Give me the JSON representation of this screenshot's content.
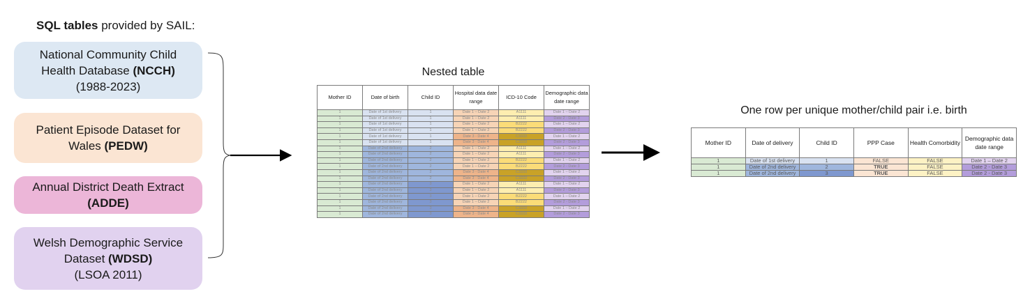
{
  "heading": {
    "bold": "SQL tables",
    "rest": " provided by SAIL:"
  },
  "sources": [
    {
      "line1": "National Community Child",
      "line2_pre": "Health Database ",
      "line2_bold": "(NCCH)",
      "line3": "(1988-2023)",
      "color": "#dde8f3"
    },
    {
      "line1": "Patient Episode Dataset for",
      "line2_pre": "Wales ",
      "line2_bold": "(PEDW)",
      "line3": "",
      "color": "#fbe5d3"
    },
    {
      "line1": "Annual District Death Extract",
      "line2_pre": "",
      "line2_bold": "(ADDE)",
      "line3": "",
      "color": "#ecb6d8"
    },
    {
      "line1": "Welsh Demographic Service",
      "line2_pre": "Dataset ",
      "line2_bold": "(WDSD)",
      "line3": "(LSOA 2011)",
      "color": "#e1d2ef"
    }
  ],
  "nested_table": {
    "title": "Nested table",
    "headers": [
      "Mother ID",
      "Date of birth",
      "Child ID",
      "Hospital data date range",
      "ICD-10 Code",
      "Demographic data date range"
    ],
    "rows": [
      [
        "1",
        "Date of 1st delivery",
        "1",
        "Date 1 – Date 2",
        "A1111",
        "Date 1 – Date 2"
      ],
      [
        "1",
        "Date of 1st delivery",
        "1",
        "Date 1 – Date 2",
        "A1111",
        "Date 2 - Date 3"
      ],
      [
        "1",
        "Date of 1st delivery",
        "1",
        "Date 1 – Date 2",
        "B2222",
        "Date 1 – Date 2"
      ],
      [
        "1",
        "Date of 1st delivery",
        "1",
        "Date 1 – Date 2",
        "B2222",
        "Date 2 - Date 3"
      ],
      [
        "1",
        "Date of 1st delivery",
        "1",
        "Date 3 - Date 4",
        "C3333",
        "Date 1 – Date 2"
      ],
      [
        "1",
        "Date of 1st delivery",
        "1",
        "Date 3 - Date 4",
        "C3333",
        "Date 2 - Date 3"
      ],
      [
        "1",
        "Date of 2nd delivery",
        "2",
        "Date 1 – Date 2",
        "A1111",
        "Date 1 – Date 2"
      ],
      [
        "1",
        "Date of 2nd delivery",
        "2",
        "Date 1 – Date 2",
        "A1111",
        "Date 2 - Date 3"
      ],
      [
        "1",
        "Date of 2nd delivery",
        "2",
        "Date 1 – Date 2",
        "B2222",
        "Date 1 – Date 2"
      ],
      [
        "1",
        "Date of 2nd delivery",
        "2",
        "Date 1 – Date 2",
        "B2222",
        "Date 2 - Date 3"
      ],
      [
        "1",
        "Date of 2nd delivery",
        "2",
        "Date 3 - Date 4",
        "C3333",
        "Date 1 – Date 2"
      ],
      [
        "1",
        "Date of 2nd delivery",
        "2",
        "Date 3 - Date 4",
        "C3333",
        "Date 2 - Date 3"
      ],
      [
        "1",
        "Date of 2nd delivery",
        "3",
        "Date 1 – Date 2",
        "A1111",
        "Date 1 – Date 2"
      ],
      [
        "1",
        "Date of 2nd delivery",
        "3",
        "Date 1 – Date 2",
        "A1111",
        "Date 2 - Date 3"
      ],
      [
        "1",
        "Date of 2nd delivery",
        "3",
        "Date 1 – Date 2",
        "B2222",
        "Date 1 – Date 2"
      ],
      [
        "1",
        "Date of 2nd delivery",
        "3",
        "Date 1 – Date 2",
        "B2222",
        "Date 2 - Date 3"
      ],
      [
        "1",
        "Date of 2nd delivery",
        "3",
        "Date 3 - Date 4",
        "C3333",
        "Date 1 – Date 2"
      ],
      [
        "1",
        "Date of 2nd delivery",
        "3",
        "Date 3 - Date 4",
        "C3333",
        "Date 2 - Date 3"
      ]
    ],
    "row_colors": [
      [
        "#d9ead3",
        "#d9e2f1",
        "#d9e2f1",
        "#f7d4b6",
        "#fdeeb0",
        "#e2d3ef"
      ],
      [
        "#d9ead3",
        "#d9e2f1",
        "#d9e2f1",
        "#f7d4b6",
        "#fdeeb0",
        "#b39ddb"
      ],
      [
        "#d9ead3",
        "#d9e2f1",
        "#d9e2f1",
        "#f7d4b6",
        "#fbdc78",
        "#e2d3ef"
      ],
      [
        "#d9ead3",
        "#d9e2f1",
        "#d9e2f1",
        "#f7d4b6",
        "#fbdc78",
        "#b39ddb"
      ],
      [
        "#d9ead3",
        "#d9e2f1",
        "#d9e2f1",
        "#eeb48a",
        "#c9a227",
        "#e2d3ef"
      ],
      [
        "#d9ead3",
        "#d9e2f1",
        "#d9e2f1",
        "#eeb48a",
        "#c9a227",
        "#b39ddb"
      ],
      [
        "#d9ead3",
        "#9fb6dd",
        "#9fb6dd",
        "#f7d4b6",
        "#fdeeb0",
        "#e2d3ef"
      ],
      [
        "#d9ead3",
        "#9fb6dd",
        "#9fb6dd",
        "#f7d4b6",
        "#fdeeb0",
        "#b39ddb"
      ],
      [
        "#d9ead3",
        "#9fb6dd",
        "#9fb6dd",
        "#f7d4b6",
        "#fbdc78",
        "#e2d3ef"
      ],
      [
        "#d9ead3",
        "#9fb6dd",
        "#9fb6dd",
        "#f7d4b6",
        "#fbdc78",
        "#b39ddb"
      ],
      [
        "#d9ead3",
        "#9fb6dd",
        "#9fb6dd",
        "#eeb48a",
        "#c9a227",
        "#e2d3ef"
      ],
      [
        "#d9ead3",
        "#9fb6dd",
        "#9fb6dd",
        "#eeb48a",
        "#c9a227",
        "#b39ddb"
      ],
      [
        "#d9ead3",
        "#9fb6dd",
        "#7f98cf",
        "#f7d4b6",
        "#fdeeb0",
        "#e2d3ef"
      ],
      [
        "#d9ead3",
        "#9fb6dd",
        "#7f98cf",
        "#f7d4b6",
        "#fdeeb0",
        "#b39ddb"
      ],
      [
        "#d9ead3",
        "#9fb6dd",
        "#7f98cf",
        "#f7d4b6",
        "#fbdc78",
        "#e2d3ef"
      ],
      [
        "#d9ead3",
        "#9fb6dd",
        "#7f98cf",
        "#f7d4b6",
        "#fbdc78",
        "#b39ddb"
      ],
      [
        "#d9ead3",
        "#9fb6dd",
        "#7f98cf",
        "#eeb48a",
        "#c9a227",
        "#e2d3ef"
      ],
      [
        "#d9ead3",
        "#9fb6dd",
        "#7f98cf",
        "#eeb48a",
        "#c9a227",
        "#b39ddb"
      ]
    ]
  },
  "final_table": {
    "title": "One row per unique mother/child pair i.e. birth",
    "headers": [
      "Mother ID",
      "Date of delivery",
      "Child ID",
      "PPP Case",
      "Health Comorbidity",
      "Demographic data date range"
    ],
    "rows": [
      [
        "1",
        "Date of 1st delivery",
        "1",
        "FALSE",
        "FALSE",
        "Date 1 – Date 2"
      ],
      [
        "1",
        "Date of 2nd delivery",
        "2",
        "TRUE",
        "FALSE",
        "Date 2 - Date 3"
      ],
      [
        "1",
        "Date of 2nd delivery",
        "3",
        "TRUE",
        "FALSE",
        "Date 2 - Date 3"
      ]
    ],
    "row_colors": [
      [
        "#d9ead3",
        "#d9e2f1",
        "#d9e2f1",
        "#fbe5d3",
        "#fdf2c4",
        "#e2d3ef"
      ],
      [
        "#d9ead3",
        "#9fb6dd",
        "#9fb6dd",
        "#fbe5d3",
        "#fdf2c4",
        "#b39ddb"
      ],
      [
        "#d9ead3",
        "#9fb6dd",
        "#7f98cf",
        "#fbe5d3",
        "#fdf2c4",
        "#b39ddb"
      ]
    ]
  }
}
